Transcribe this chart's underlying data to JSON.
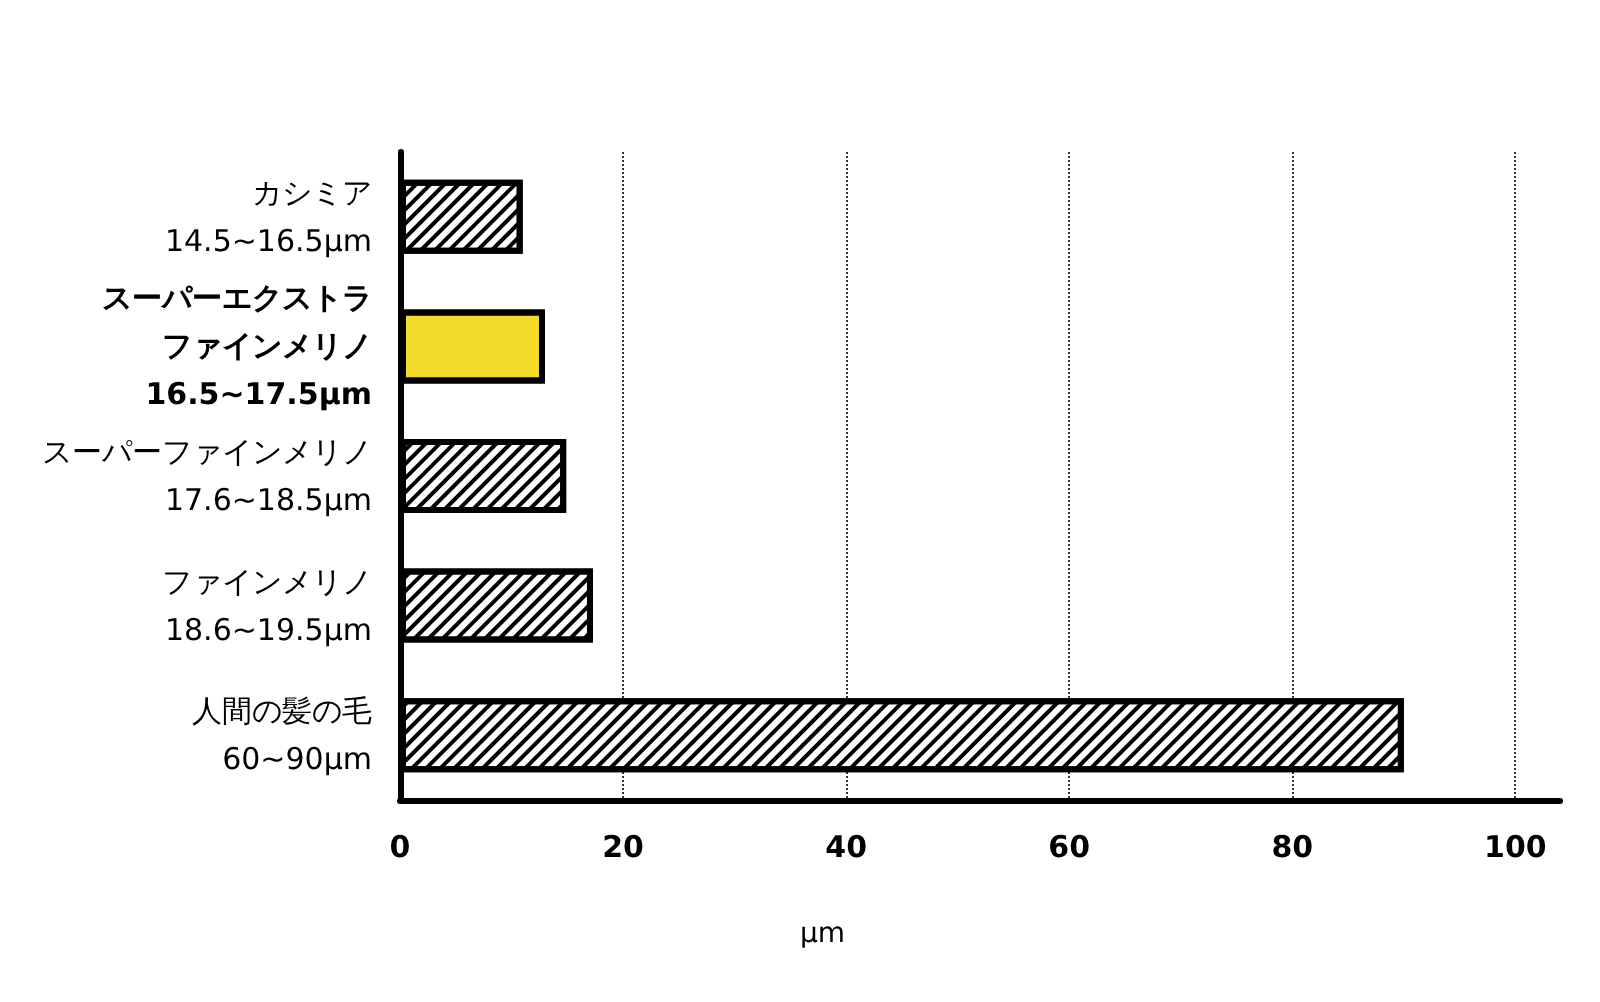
{
  "chart_data": {
    "type": "bar",
    "orientation": "horizontal",
    "categories": [
      "カシミア\n14.5~16.5µm",
      "スーパーエクストラファインメリノ\n16.5~17.5µm",
      "スーパーファインメリノ\n17.6~18.5µm",
      "ファインメリノ\n18.6~19.5µm",
      "人間の髪の毛\n60~90µm"
    ],
    "values": [
      11,
      13,
      14.9,
      17.3,
      90
    ],
    "colors": [
      "#ffffff",
      "#f5dc2a",
      "#ffffff",
      "#ffffff",
      "#ffffff"
    ],
    "xlabel": "µm",
    "xlim": [
      0,
      104
    ],
    "xticks": [
      0,
      20,
      40,
      60,
      80,
      100
    ],
    "grid": "x"
  }
}
